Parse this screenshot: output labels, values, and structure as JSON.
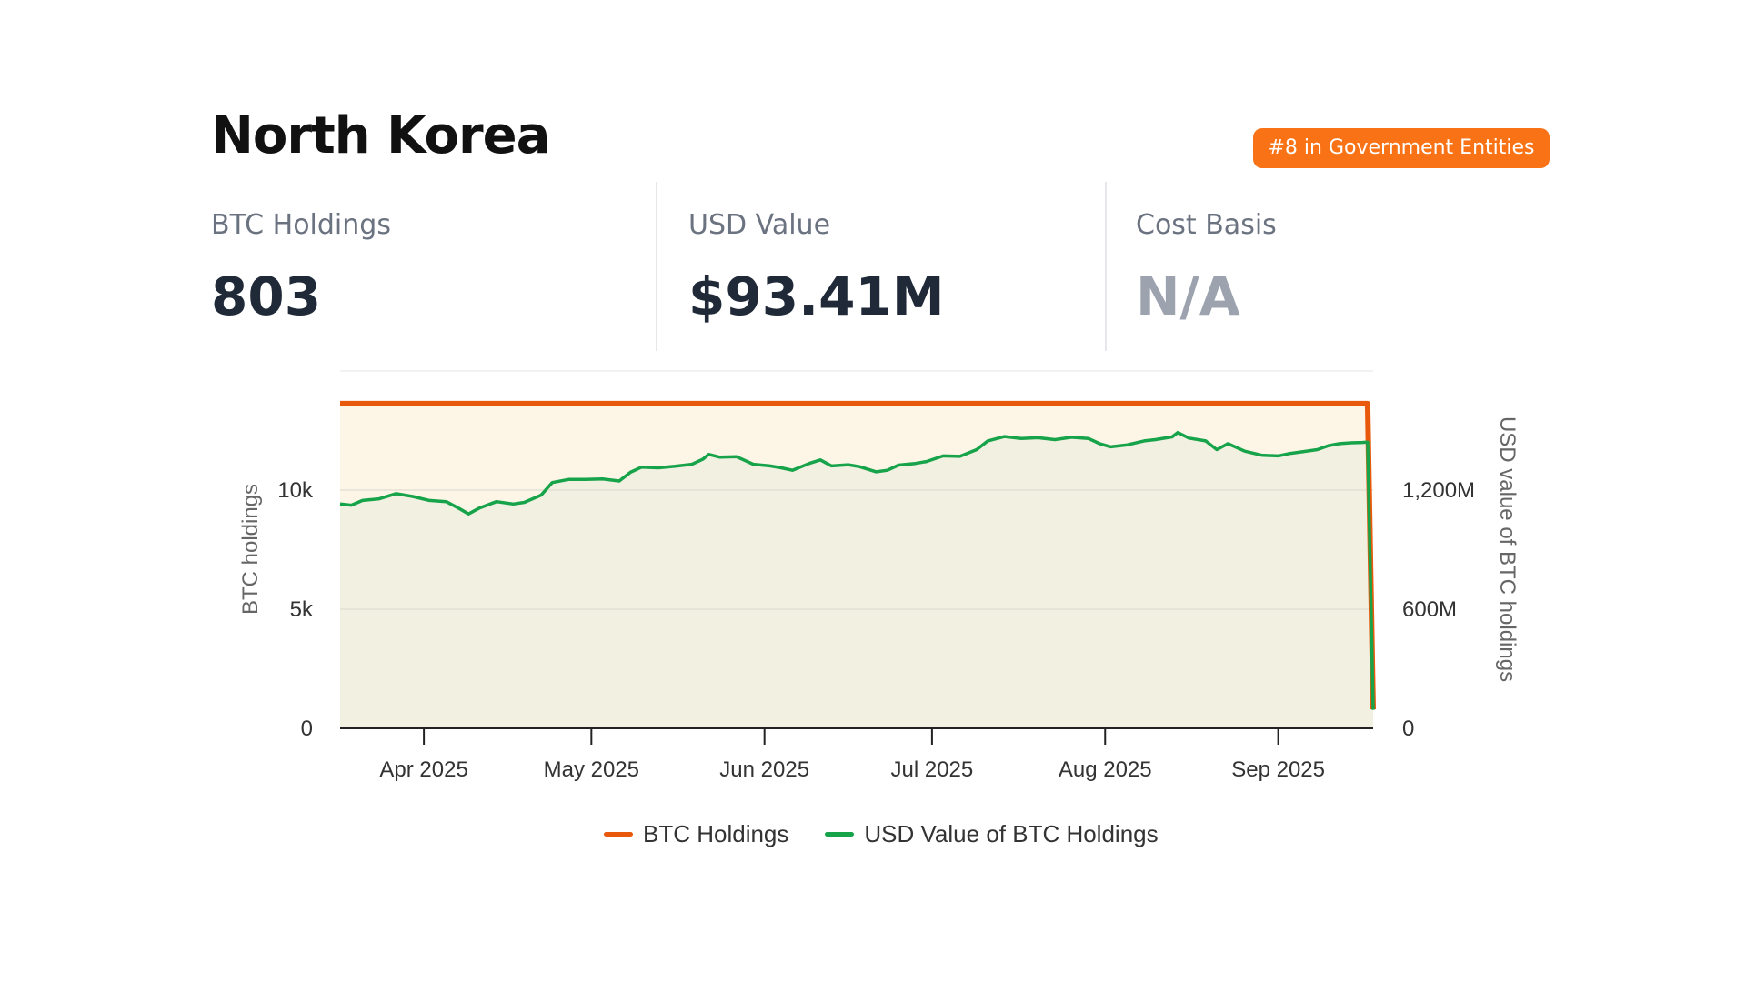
{
  "entity": {
    "name": "North Korea",
    "rank_badge": "#8 in Government Entities"
  },
  "stats": [
    {
      "label": "BTC Holdings",
      "value": "803"
    },
    {
      "label": "USD Value",
      "value": "$93.41M"
    },
    {
      "label": "Cost Basis",
      "value": "N/A"
    }
  ],
  "colors": {
    "badge": "#f97316",
    "btc_series": "#e8590c",
    "usd_series": "#16a34a",
    "btc_fill": "#fdf4e3",
    "usd_fill": "#f1efdf"
  },
  "chart_data": {
    "type": "line",
    "x_tick_labels": [
      "Apr 2025",
      "May 2025",
      "Jun 2025",
      "Jul 2025",
      "Aug 2025",
      "Sep 2025"
    ],
    "x_ticks": [
      "2025-04-01",
      "2025-05-01",
      "2025-06-01",
      "2025-07-01",
      "2025-08-01",
      "2025-09-01"
    ],
    "xlim": [
      "2025-03-17",
      "2025-09-18"
    ],
    "y_left": {
      "label": "BTC holdings",
      "ticks": [
        "0",
        "5k",
        "10k"
      ],
      "tick_values": [
        0,
        5000,
        10000
      ],
      "ylim": [
        0,
        15000
      ]
    },
    "y_right": {
      "label": "USD value of BTC holdings",
      "ticks": [
        "0",
        "600M",
        "1,200M"
      ],
      "tick_values": [
        0,
        600000000,
        1200000000
      ],
      "ylim": [
        0,
        1800000000
      ]
    },
    "grid": true,
    "legend_position": "bottom",
    "series": [
      {
        "name": "BTC Holdings",
        "axis": "left",
        "style": "area",
        "points": [
          [
            "2025-03-17",
            13631
          ],
          [
            "2025-09-17",
            13631
          ],
          [
            "2025-09-18",
            803
          ]
        ]
      },
      {
        "name": "USD Value of BTC Holdings",
        "axis": "right",
        "style": "area",
        "points": [
          [
            "2025-03-17",
            1130000000
          ],
          [
            "2025-03-19",
            1124000000
          ],
          [
            "2025-03-21",
            1148000000
          ],
          [
            "2025-03-24",
            1156000000
          ],
          [
            "2025-03-27",
            1182000000
          ],
          [
            "2025-03-30",
            1168000000
          ],
          [
            "2025-04-02",
            1148000000
          ],
          [
            "2025-04-05",
            1142000000
          ],
          [
            "2025-04-07",
            1112000000
          ],
          [
            "2025-04-09",
            1080000000
          ],
          [
            "2025-04-11",
            1110000000
          ],
          [
            "2025-04-14",
            1142000000
          ],
          [
            "2025-04-17",
            1130000000
          ],
          [
            "2025-04-19",
            1138000000
          ],
          [
            "2025-04-22",
            1175000000
          ],
          [
            "2025-04-24",
            1238000000
          ],
          [
            "2025-04-27",
            1254000000
          ],
          [
            "2025-04-30",
            1254000000
          ],
          [
            "2025-05-03",
            1256000000
          ],
          [
            "2025-05-06",
            1246000000
          ],
          [
            "2025-05-08",
            1290000000
          ],
          [
            "2025-05-10",
            1316000000
          ],
          [
            "2025-05-13",
            1312000000
          ],
          [
            "2025-05-16",
            1320000000
          ],
          [
            "2025-05-19",
            1330000000
          ],
          [
            "2025-05-21",
            1356000000
          ],
          [
            "2025-05-22",
            1380000000
          ],
          [
            "2025-05-24",
            1366000000
          ],
          [
            "2025-05-27",
            1368000000
          ],
          [
            "2025-05-30",
            1330000000
          ],
          [
            "2025-06-02",
            1322000000
          ],
          [
            "2025-06-04",
            1312000000
          ],
          [
            "2025-06-06",
            1300000000
          ],
          [
            "2025-06-09",
            1334000000
          ],
          [
            "2025-06-11",
            1352000000
          ],
          [
            "2025-06-13",
            1322000000
          ],
          [
            "2025-06-16",
            1328000000
          ],
          [
            "2025-06-18",
            1318000000
          ],
          [
            "2025-06-21",
            1292000000
          ],
          [
            "2025-06-23",
            1300000000
          ],
          [
            "2025-06-25",
            1326000000
          ],
          [
            "2025-06-28",
            1334000000
          ],
          [
            "2025-06-30",
            1344000000
          ],
          [
            "2025-07-03",
            1372000000
          ],
          [
            "2025-07-06",
            1370000000
          ],
          [
            "2025-07-09",
            1404000000
          ],
          [
            "2025-07-11",
            1448000000
          ],
          [
            "2025-07-14",
            1470000000
          ],
          [
            "2025-07-17",
            1460000000
          ],
          [
            "2025-07-20",
            1464000000
          ],
          [
            "2025-07-23",
            1454000000
          ],
          [
            "2025-07-26",
            1466000000
          ],
          [
            "2025-07-29",
            1460000000
          ],
          [
            "2025-07-31",
            1434000000
          ],
          [
            "2025-08-02",
            1418000000
          ],
          [
            "2025-08-05",
            1428000000
          ],
          [
            "2025-08-08",
            1448000000
          ],
          [
            "2025-08-10",
            1454000000
          ],
          [
            "2025-08-13",
            1468000000
          ],
          [
            "2025-08-14",
            1490000000
          ],
          [
            "2025-08-16",
            1462000000
          ],
          [
            "2025-08-19",
            1448000000
          ],
          [
            "2025-08-21",
            1404000000
          ],
          [
            "2025-08-23",
            1434000000
          ],
          [
            "2025-08-26",
            1396000000
          ],
          [
            "2025-08-29",
            1376000000
          ],
          [
            "2025-09-01",
            1372000000
          ],
          [
            "2025-09-03",
            1384000000
          ],
          [
            "2025-09-05",
            1392000000
          ],
          [
            "2025-09-08",
            1404000000
          ],
          [
            "2025-09-10",
            1424000000
          ],
          [
            "2025-09-12",
            1434000000
          ],
          [
            "2025-09-14",
            1438000000
          ],
          [
            "2025-09-16",
            1440000000
          ],
          [
            "2025-09-17",
            1442000000
          ],
          [
            "2025-09-18",
            93410000
          ]
        ]
      }
    ]
  }
}
